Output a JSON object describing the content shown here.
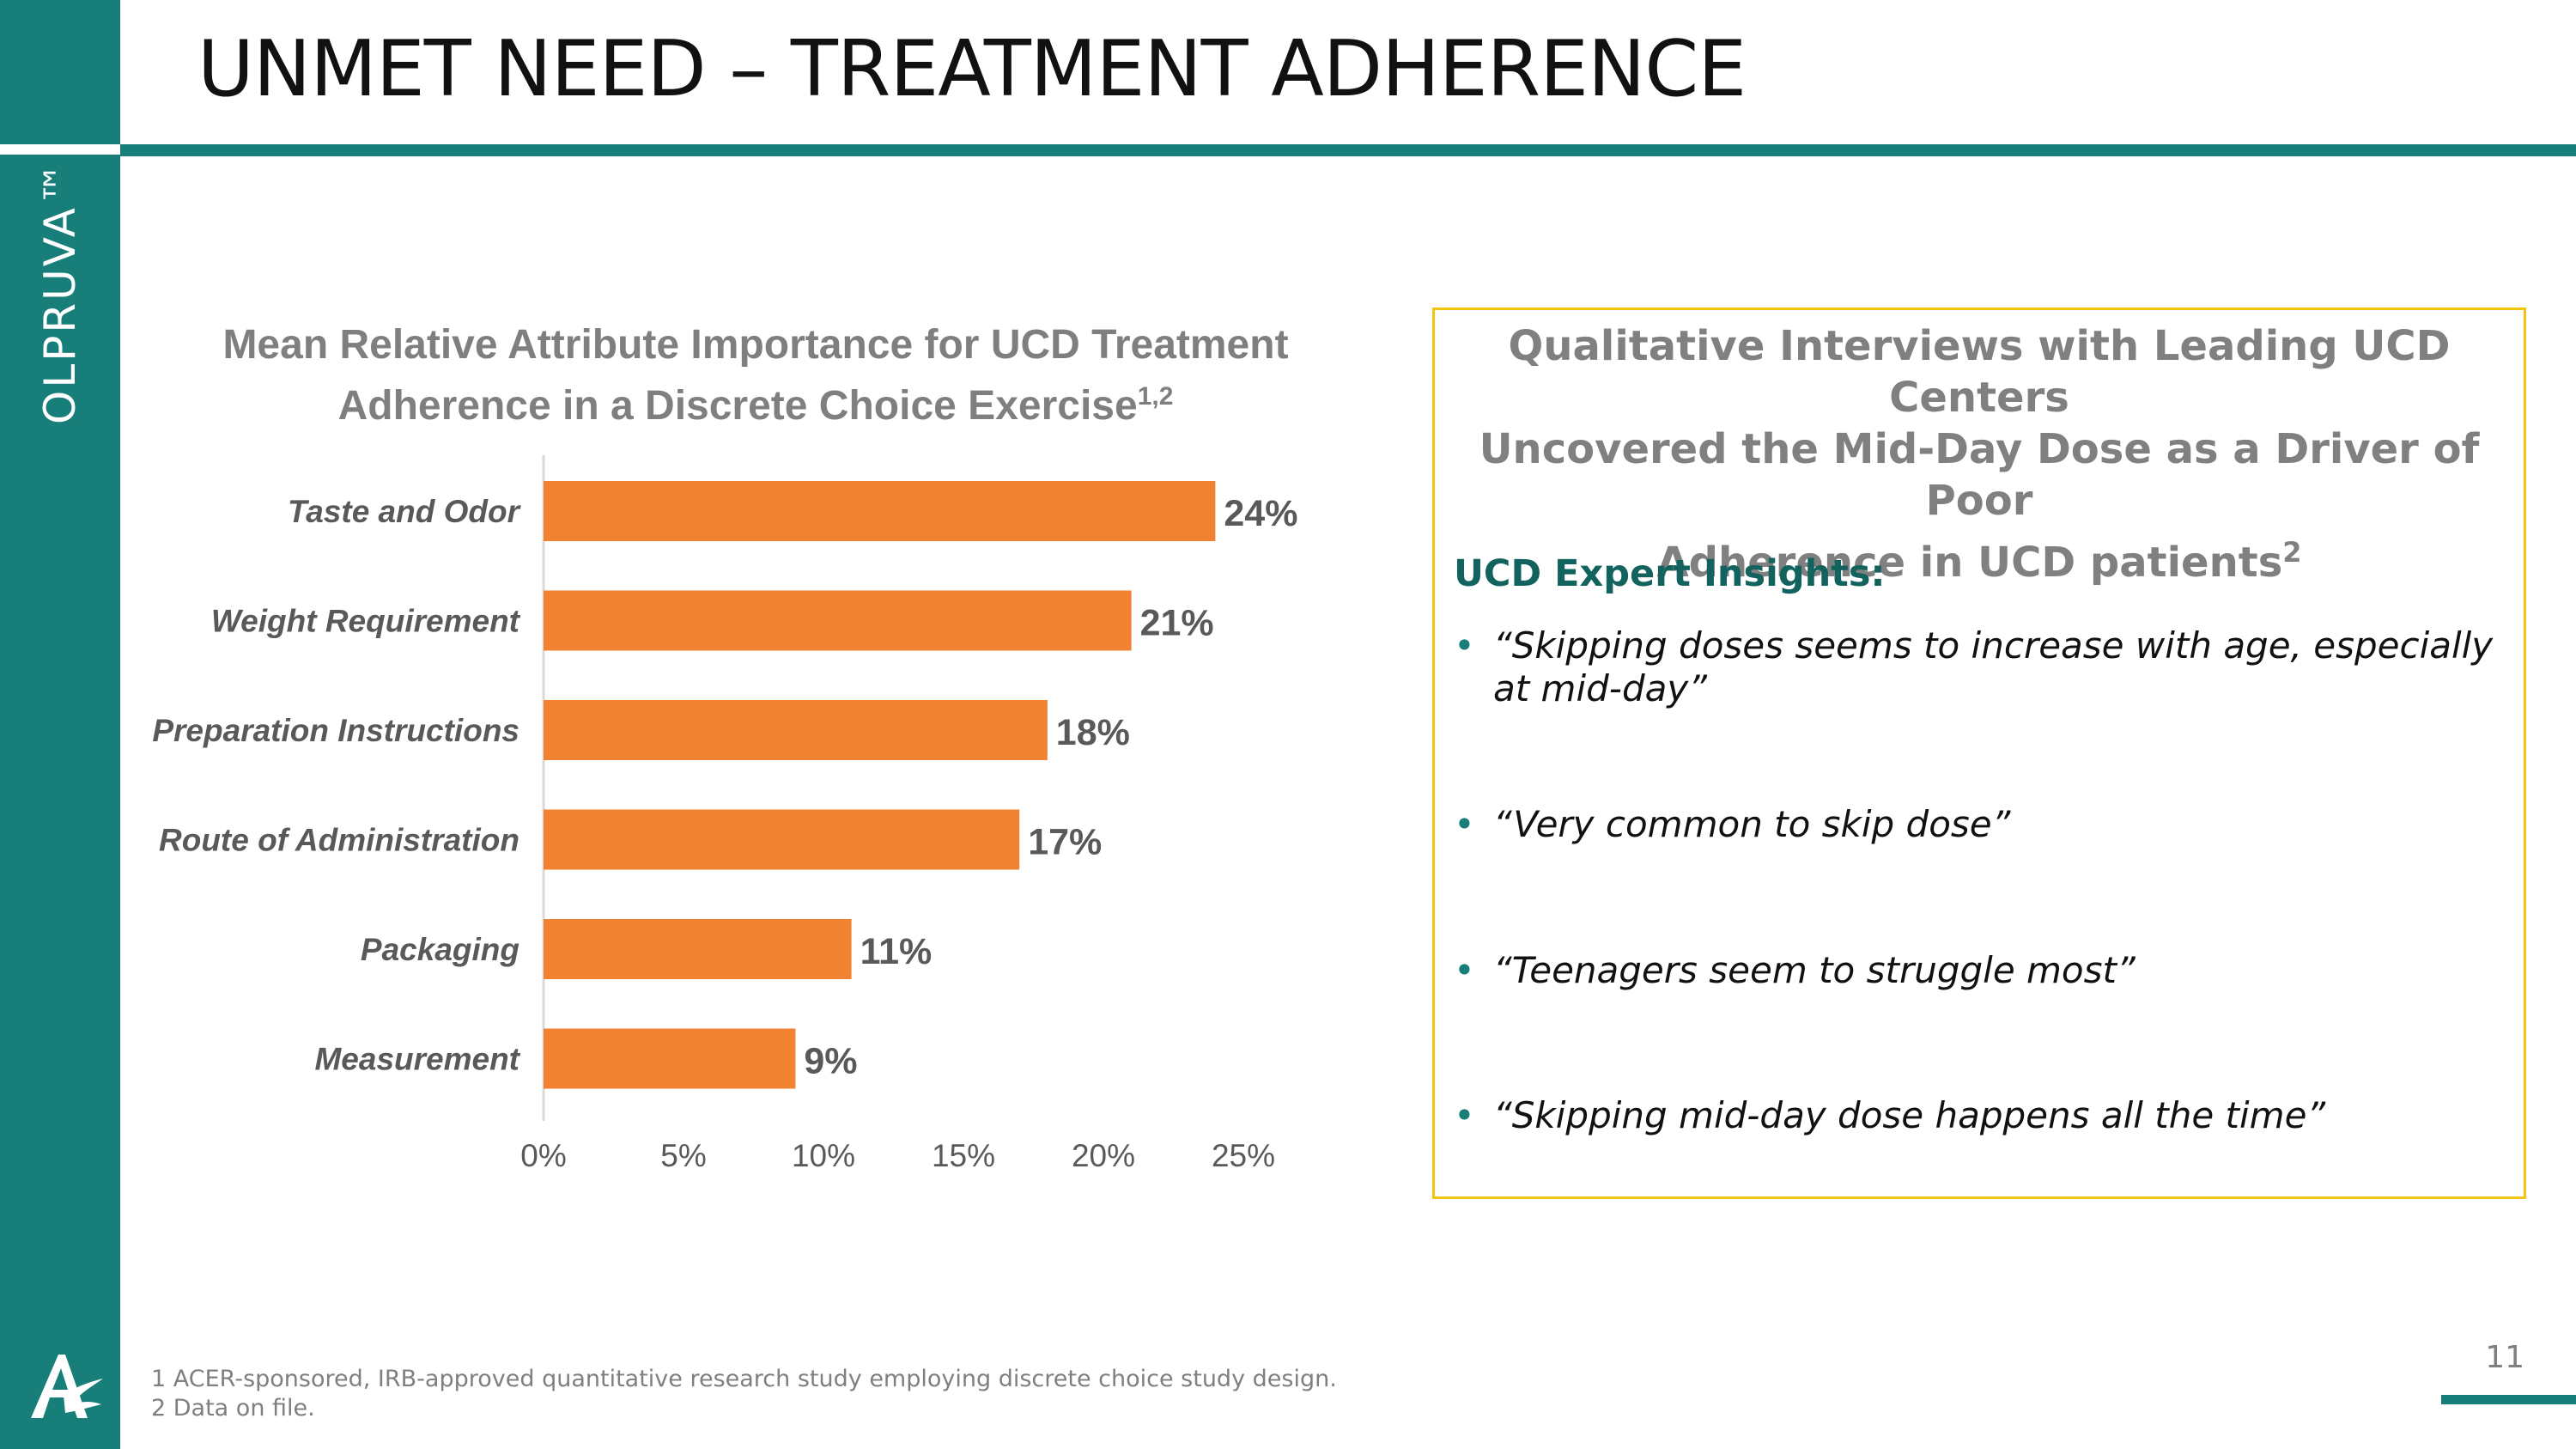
{
  "brand": {
    "name": "OLPRUVA™",
    "logo_icon": "acer-logo-icon",
    "colors": {
      "teal": "#177e79",
      "dark_teal": "#12625e",
      "orange": "#f08232",
      "gold": "#f2c40f"
    }
  },
  "page": {
    "title": "UNMET NEED – TREATMENT ADHERENCE",
    "number": "11"
  },
  "chart_title": {
    "text": "Mean Relative Attribute Importance for UCD Treatment Adherence in a Discrete Choice Exercise",
    "superscript": "1,2"
  },
  "chart_data": {
    "type": "bar",
    "orientation": "horizontal",
    "title": "Mean Relative Attribute Importance for UCD Treatment Adherence in a Discrete Choice Exercise",
    "categories": [
      "Taste and Odor",
      "Weight Requirement",
      "Preparation Instructions",
      "Route of Administration",
      "Packaging",
      "Measurement"
    ],
    "values": [
      24,
      21,
      18,
      17,
      11,
      9
    ],
    "value_labels": [
      "24%",
      "21%",
      "18%",
      "17%",
      "11%",
      "9%"
    ],
    "xlim": [
      0,
      25
    ],
    "xticks": [
      0,
      5,
      10,
      15,
      20,
      25
    ],
    "xtick_labels": [
      "0%",
      "5%",
      "10%",
      "15%",
      "20%",
      "25%"
    ],
    "xlabel": "",
    "ylabel": "",
    "grid": false,
    "bar_color": "#f08232"
  },
  "insights_box": {
    "heading_lines": [
      "Qualitative Interviews with Leading UCD Centers",
      "Uncovered the Mid-Day Dose as a Driver of Poor",
      "Adherence in UCD patients"
    ],
    "heading_superscript": "2",
    "subheading": "UCD Expert Insights:",
    "bullet_symbol": "•",
    "quotes": [
      "“Skipping doses seems to increase with age, especially at mid-day”",
      "“Very common to skip dose”",
      "“Teenagers seem to struggle most”",
      "“Skipping mid-day dose happens all the time”"
    ]
  },
  "footnotes": [
    "1 ACER-sponsored, IRB-approved quantitative research study employing discrete choice study design.",
    "2 Data on file."
  ]
}
